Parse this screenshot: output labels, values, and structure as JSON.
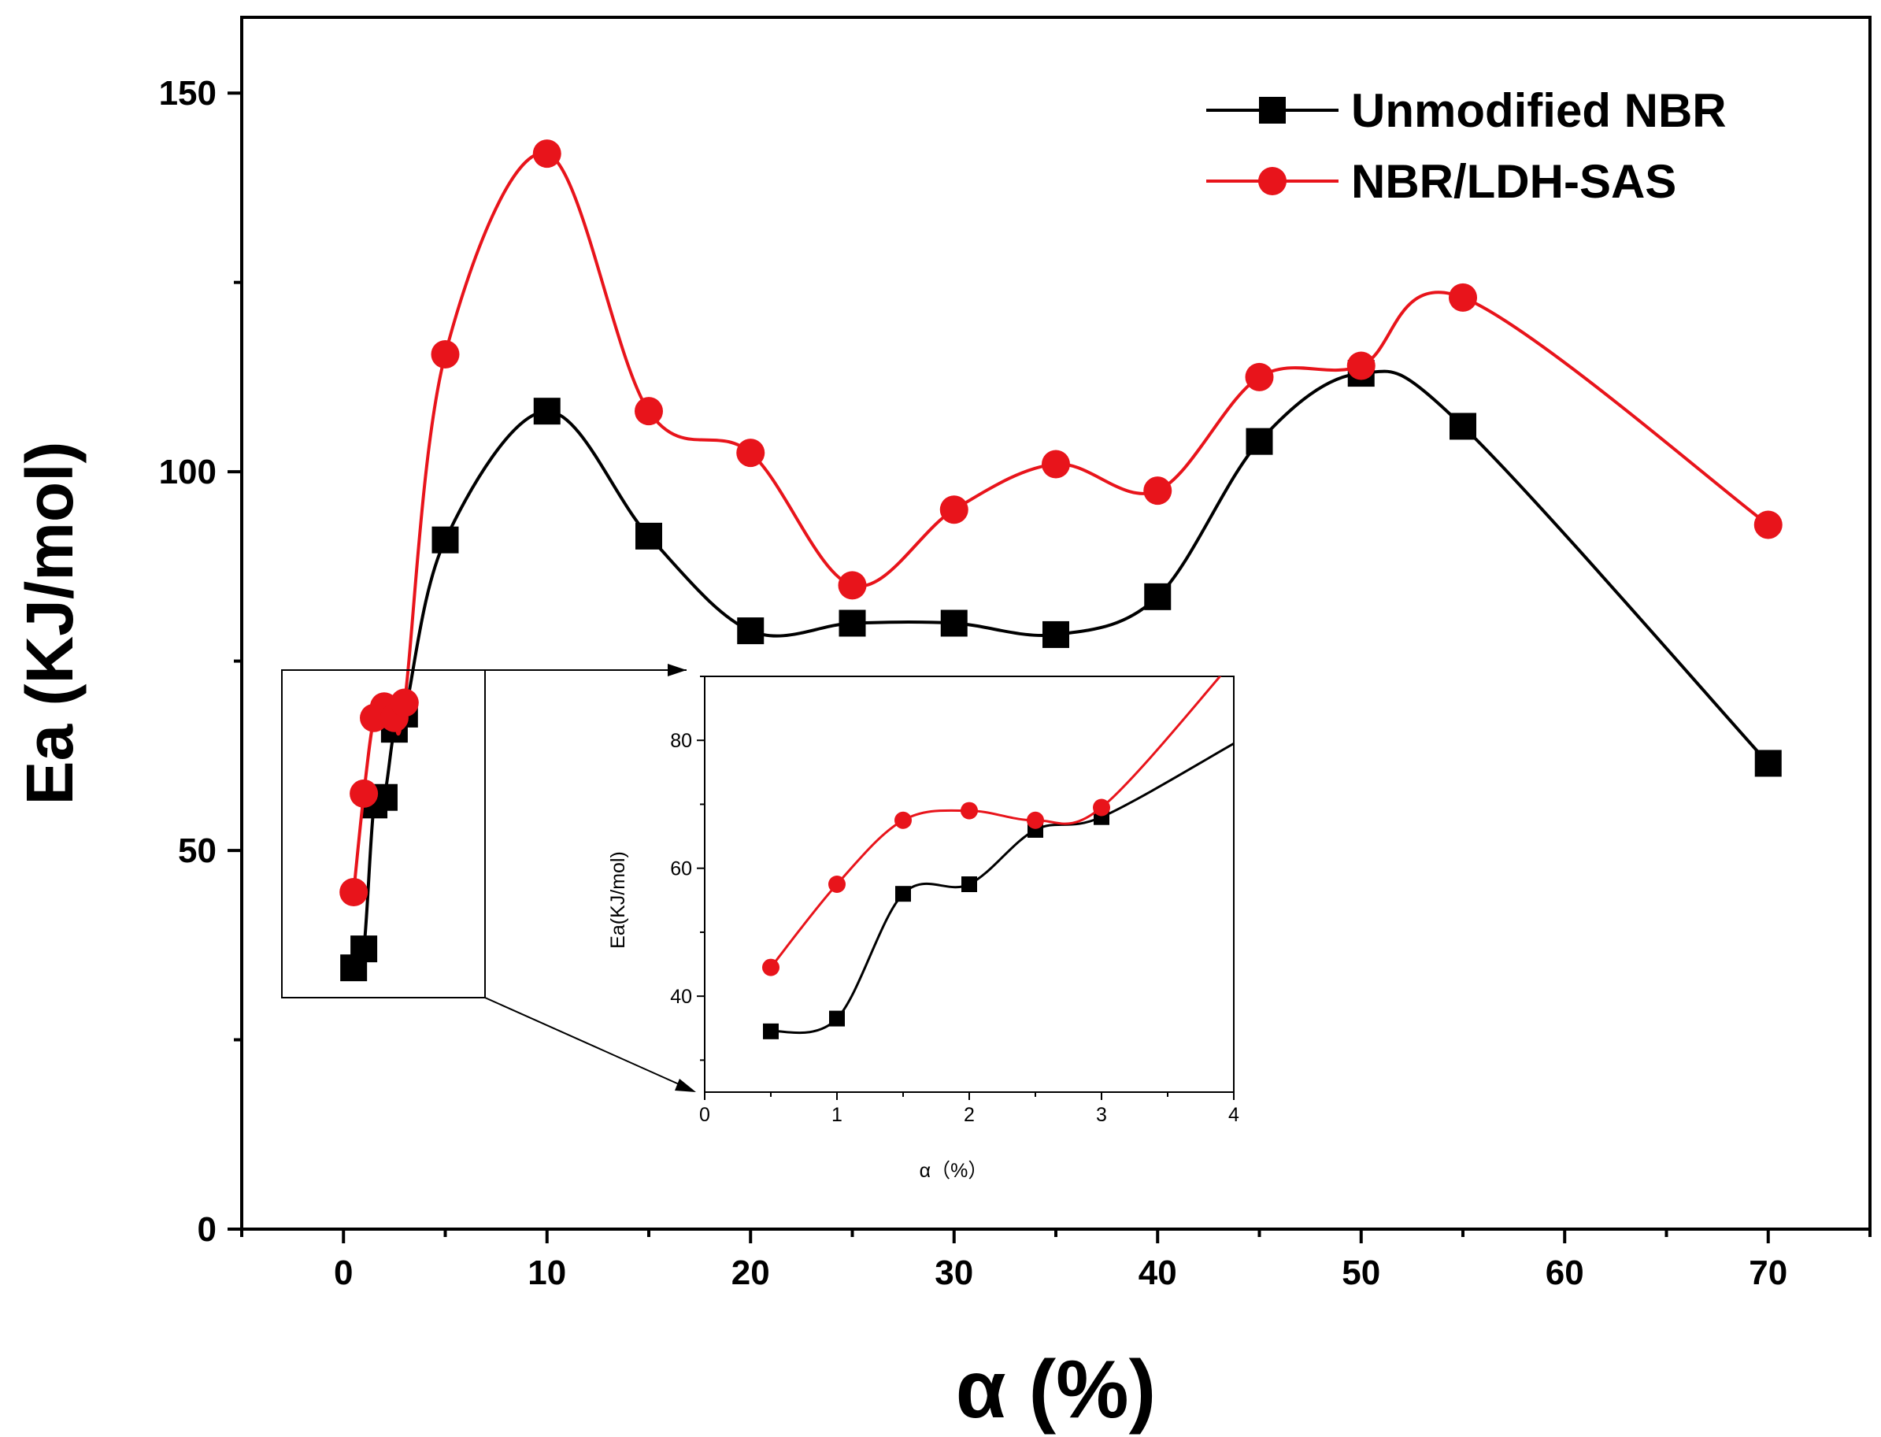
{
  "chart_data": [
    {
      "type": "line",
      "xlabel": "α (%)",
      "ylabel": "Ea (KJ/mol)",
      "xlim": [
        -5,
        75
      ],
      "ylim": [
        0,
        160
      ],
      "x_ticks": [
        0,
        10,
        20,
        30,
        40,
        50,
        60,
        70
      ],
      "y_ticks": [
        0,
        50,
        100,
        150
      ],
      "legend_position": "top-right",
      "grid": false,
      "series": [
        {
          "name": "Unmodified NBR",
          "color": "#000000",
          "marker": "square",
          "x": [
            0.5,
            1,
            1.5,
            2,
            2.5,
            3,
            5,
            10,
            15,
            20,
            25,
            30,
            35,
            40,
            45,
            50,
            55,
            70
          ],
          "y": [
            34.5,
            37,
            56,
            57,
            66,
            68,
            91,
            108,
            91.5,
            79,
            80,
            80,
            78.5,
            83.5,
            104,
            113,
            106,
            61.5
          ]
        },
        {
          "name": "NBR/LDH-SAS",
          "color": "#e8141b",
          "marker": "circle",
          "x": [
            0.5,
            1,
            1.5,
            2,
            2.5,
            3,
            5,
            10,
            15,
            20,
            25,
            30,
            35,
            40,
            45,
            50,
            55,
            70
          ],
          "y": [
            44.5,
            57.5,
            67.5,
            69,
            67.5,
            69.5,
            115.5,
            142,
            108,
            102.5,
            85,
            95,
            101,
            97.5,
            112.5,
            114,
            123,
            93
          ]
        }
      ]
    },
    {
      "type": "line",
      "role": "inset",
      "xlabel": "α（%）",
      "ylabel": "Ea(KJ/mol)",
      "xlim": [
        0,
        4
      ],
      "ylim": [
        25,
        90
      ],
      "x_ticks": [
        0,
        1,
        2,
        3,
        4
      ],
      "y_ticks": [
        40,
        60,
        80
      ],
      "series": [
        {
          "name": "Unmodified NBR",
          "color": "#000000",
          "marker": "square",
          "x": [
            0.5,
            1,
            1.5,
            2,
            2.5,
            3
          ],
          "y": [
            34.5,
            36.5,
            56,
            57.5,
            66,
            68
          ]
        },
        {
          "name": "NBR/LDH-SAS",
          "color": "#e8141b",
          "marker": "circle",
          "x": [
            0.5,
            1,
            1.5,
            2,
            2.5,
            3
          ],
          "y": [
            44.5,
            57.5,
            67.5,
            69,
            67.5,
            69.5
          ]
        }
      ]
    }
  ]
}
